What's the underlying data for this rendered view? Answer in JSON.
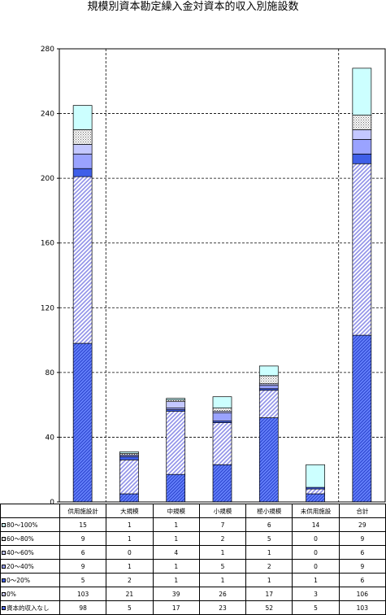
{
  "chart_data": {
    "type": "bar",
    "stacked": true,
    "title": "規模別資本勘定繰入金対資本的収入別施設数",
    "categories": [
      "供用施設計",
      "大規模",
      "中規模",
      "小規模",
      "極小規模",
      "未供用施設",
      "合計"
    ],
    "ylim": [
      0,
      280
    ],
    "yticks": [
      "0",
      "40",
      "80",
      "120",
      "160",
      "200",
      "240",
      "280"
    ],
    "grid": true,
    "series": [
      {
        "name": "資本的収入なし",
        "color": "#4f6fe8",
        "pattern": "hatch-dense",
        "values": [
          98,
          5,
          17,
          23,
          52,
          5,
          103
        ]
      },
      {
        "name": "0%",
        "color": "#8f90e8",
        "pattern": "hatch-light",
        "values": [
          103,
          21,
          39,
          26,
          17,
          3,
          106
        ]
      },
      {
        "name": "0～20%",
        "color": "#3f5fe8",
        "pattern": "solid",
        "values": [
          5,
          2,
          1,
          1,
          1,
          1,
          6
        ]
      },
      {
        "name": "20～40%",
        "color": "#9aa3ff",
        "pattern": "solid",
        "values": [
          9,
          1,
          1,
          5,
          2,
          0,
          9
        ]
      },
      {
        "name": "40～60%",
        "color": "#c4c8ff",
        "pattern": "solid",
        "values": [
          6,
          0,
          4,
          1,
          1,
          0,
          6
        ]
      },
      {
        "name": "60～80%",
        "color": "#ffffff",
        "pattern": "dots",
        "values": [
          9,
          1,
          1,
          2,
          5,
          0,
          9
        ]
      },
      {
        "name": "80～100%",
        "color": "#ccffff",
        "pattern": "solid",
        "values": [
          15,
          1,
          1,
          7,
          6,
          14,
          29
        ]
      }
    ]
  }
}
